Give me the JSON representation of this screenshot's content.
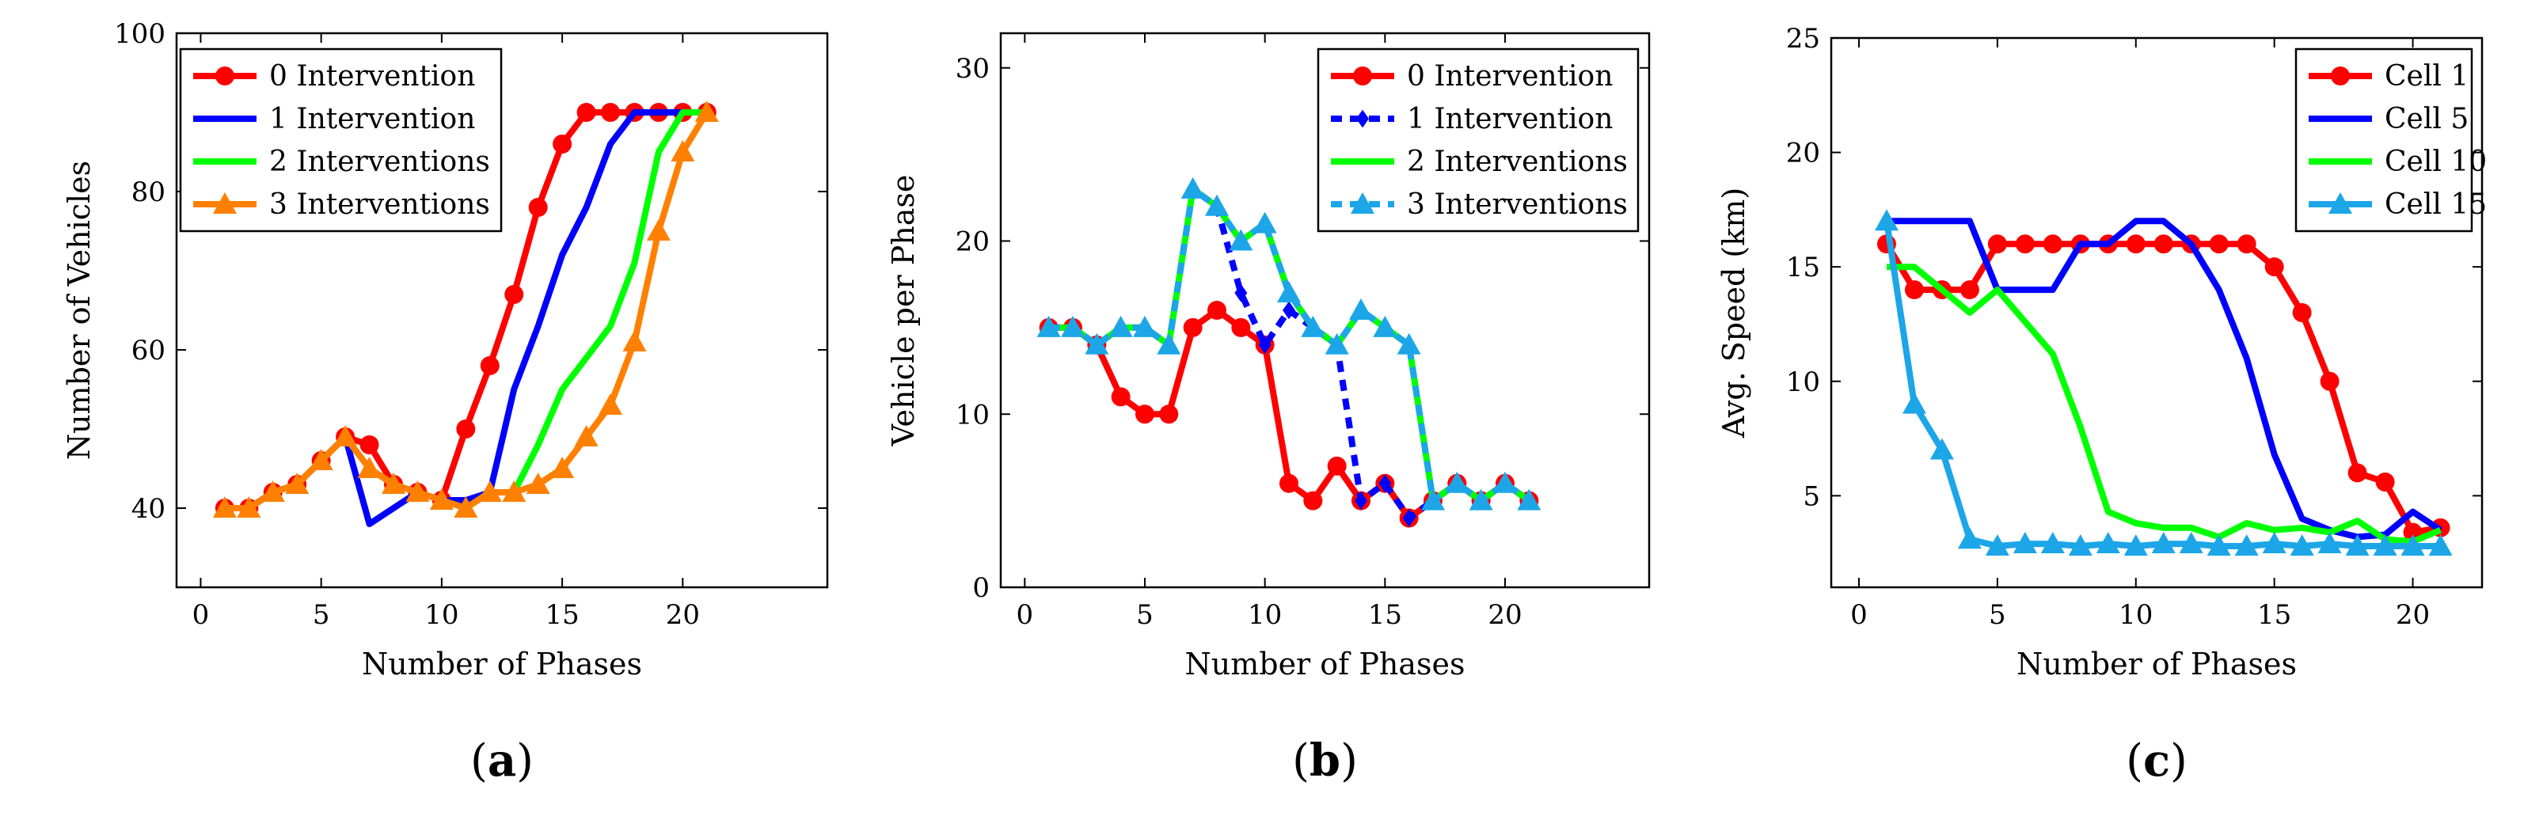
{
  "chart_data": [
    {
      "type": "line",
      "caption": "(a)",
      "xlabel": "Number of Phases",
      "ylabel": "Number of Vehicles",
      "xlim": [
        -1,
        26
      ],
      "ylim": [
        30,
        100
      ],
      "xticks": [
        0,
        5,
        10,
        15,
        20
      ],
      "yticks": [
        40,
        60,
        80,
        100
      ],
      "legend_position": "top-left",
      "series": [
        {
          "name": "0 Intervention",
          "color": "#ff0000",
          "marker": "circle",
          "dashed": false,
          "x": [
            1,
            2,
            3,
            4,
            5,
            6,
            7,
            8,
            9,
            10,
            11,
            12,
            13,
            14,
            15,
            16,
            17,
            18,
            19,
            20,
            21
          ],
          "y": [
            40,
            40,
            42,
            43,
            46,
            49,
            48,
            43,
            42,
            41,
            50,
            58,
            67,
            78,
            86,
            90,
            90,
            90,
            90,
            90,
            90
          ]
        },
        {
          "name": "1 Intervention",
          "color": "#0000ff",
          "marker": "none",
          "dashed": false,
          "x": [
            1,
            2,
            3,
            4,
            5,
            6,
            7,
            8,
            9,
            10,
            11,
            12,
            13,
            14,
            15,
            16,
            17,
            18,
            19,
            20,
            21
          ],
          "y": [
            40,
            40,
            42,
            43,
            46,
            49,
            38,
            40,
            42,
            41,
            41,
            42,
            55,
            63,
            72,
            78,
            86,
            90,
            90,
            90,
            90
          ]
        },
        {
          "name": "2 Interventions",
          "color": "#00ff00",
          "marker": "none",
          "dashed": false,
          "x": [
            1,
            2,
            3,
            4,
            5,
            6,
            7,
            8,
            9,
            10,
            11,
            12,
            13,
            14,
            15,
            16,
            17,
            18,
            19,
            20,
            21
          ],
          "y": [
            40,
            40,
            42,
            43,
            46,
            49,
            45,
            43,
            42,
            41,
            40,
            42,
            42,
            48,
            55,
            59,
            63,
            71,
            85,
            90,
            90
          ]
        },
        {
          "name": "3 Interventions",
          "color": "#ff8000",
          "marker": "triangle",
          "dashed": false,
          "x": [
            1,
            2,
            3,
            4,
            5,
            6,
            7,
            8,
            9,
            10,
            11,
            12,
            13,
            14,
            15,
            16,
            17,
            18,
            19,
            20,
            21
          ],
          "y": [
            40,
            40,
            42,
            43,
            46,
            49,
            45,
            43,
            42,
            41,
            40,
            42,
            42,
            43,
            45,
            49,
            53,
            61,
            75,
            85,
            90
          ]
        }
      ]
    },
    {
      "type": "line",
      "caption": "(b)",
      "xlabel": "Number of Phases",
      "ylabel": "Vehicle per Phase",
      "xlim": [
        -1,
        26
      ],
      "ylim": [
        0,
        32
      ],
      "xticks": [
        0,
        5,
        10,
        15,
        20
      ],
      "yticks": [
        0,
        10,
        20,
        30
      ],
      "legend_position": "top-right",
      "series": [
        {
          "name": "0 Intervention",
          "color": "#ff0000",
          "marker": "circle",
          "dashed": false,
          "x": [
            1,
            2,
            3,
            4,
            5,
            6,
            7,
            8,
            9,
            10,
            11,
            12,
            13,
            14,
            15,
            16,
            17,
            18,
            19,
            20,
            21
          ],
          "y": [
            15,
            15,
            14,
            11,
            10,
            10,
            15,
            16,
            15,
            14,
            6,
            5,
            7,
            5,
            6,
            4,
            5,
            6,
            5,
            6,
            5
          ]
        },
        {
          "name": "1 Intervention",
          "color": "#0000ff",
          "marker": "diamond",
          "dashed": true,
          "x": [
            1,
            2,
            3,
            4,
            5,
            6,
            7,
            8,
            9,
            10,
            11,
            12,
            13,
            14,
            15,
            16,
            17,
            18,
            19,
            20,
            21
          ],
          "y": [
            15,
            15,
            14,
            15,
            15,
            14,
            23,
            22,
            17,
            14,
            16,
            15,
            14,
            5,
            6,
            4,
            5,
            6,
            5,
            6,
            5
          ]
        },
        {
          "name": "2 Interventions",
          "color": "#00ff00",
          "marker": "none",
          "dashed": false,
          "x": [
            1,
            2,
            3,
            4,
            5,
            6,
            7,
            8,
            9,
            10,
            11,
            12,
            13,
            14,
            15,
            16,
            17,
            18,
            19,
            20,
            21
          ],
          "y": [
            15,
            15,
            14,
            15,
            15,
            14,
            23,
            22,
            20,
            21,
            17,
            15,
            14,
            16,
            15,
            14,
            5,
            6,
            5,
            6,
            5
          ]
        },
        {
          "name": "3 Interventions",
          "color": "#1ca6e8",
          "marker": "triangle",
          "dashed": true,
          "x": [
            1,
            2,
            3,
            4,
            5,
            6,
            7,
            8,
            9,
            10,
            11,
            12,
            13,
            14,
            15,
            16,
            17,
            18,
            19,
            20,
            21
          ],
          "y": [
            15,
            15,
            14,
            15,
            15,
            14,
            23,
            22,
            20,
            21,
            17,
            15,
            14,
            16,
            15,
            14,
            5,
            6,
            5,
            6,
            5
          ]
        }
      ]
    },
    {
      "type": "line",
      "caption": "(c)",
      "xlabel": "Number of Phases",
      "ylabel": "Avg. Speed (km)",
      "xlim": [
        -1,
        22.5
      ],
      "ylim": [
        1,
        25
      ],
      "xticks": [
        0,
        5,
        10,
        15,
        20
      ],
      "yticks": [
        5,
        10,
        15,
        20,
        25
      ],
      "legend_position": "top-right",
      "series": [
        {
          "name": "Cell 1",
          "color": "#ff0000",
          "marker": "circle",
          "dashed": false,
          "x": [
            1,
            2,
            3,
            4,
            5,
            6,
            7,
            8,
            9,
            10,
            11,
            12,
            13,
            14,
            15,
            16,
            17,
            18,
            19,
            20,
            21
          ],
          "y": [
            16,
            14,
            14,
            14,
            16,
            16,
            16,
            16,
            16,
            16,
            16,
            16,
            16,
            16,
            15,
            13,
            10,
            6,
            5.6,
            3.4,
            3.6
          ]
        },
        {
          "name": "Cell 5",
          "color": "#0000ff",
          "marker": "none",
          "dashed": false,
          "x": [
            1,
            2,
            3,
            4,
            5,
            6,
            7,
            8,
            9,
            10,
            11,
            12,
            13,
            14,
            15,
            16,
            17,
            18,
            19,
            20,
            21
          ],
          "y": [
            17,
            17,
            17,
            17,
            14,
            14,
            14,
            16,
            16,
            17,
            17,
            16,
            14,
            11,
            6.8,
            4,
            3.5,
            3.2,
            3.3,
            4.3,
            3.5
          ]
        },
        {
          "name": "Cell 10",
          "color": "#00ff00",
          "marker": "none",
          "dashed": false,
          "x": [
            1,
            2,
            3,
            4,
            5,
            6,
            7,
            8,
            9,
            10,
            11,
            12,
            13,
            14,
            15,
            16,
            17,
            18,
            19,
            20,
            21
          ],
          "y": [
            15,
            15,
            14,
            13,
            14,
            12.6,
            11.2,
            8,
            4.3,
            3.8,
            3.6,
            3.6,
            3.2,
            3.8,
            3.5,
            3.6,
            3.4,
            3.9,
            3.1,
            3.0,
            3.5
          ]
        },
        {
          "name": "Cell 15",
          "color": "#1ca6e8",
          "marker": "triangle",
          "dashed": false,
          "x": [
            1,
            2,
            3,
            4,
            5,
            6,
            7,
            8,
            9,
            10,
            11,
            12,
            13,
            14,
            15,
            16,
            17,
            18,
            19,
            20,
            21
          ],
          "y": [
            17,
            9,
            7,
            3.1,
            2.8,
            2.9,
            2.9,
            2.8,
            2.9,
            2.8,
            2.9,
            2.9,
            2.8,
            2.8,
            2.9,
            2.8,
            2.9,
            2.8,
            2.8,
            2.8,
            2.8
          ]
        }
      ]
    }
  ]
}
